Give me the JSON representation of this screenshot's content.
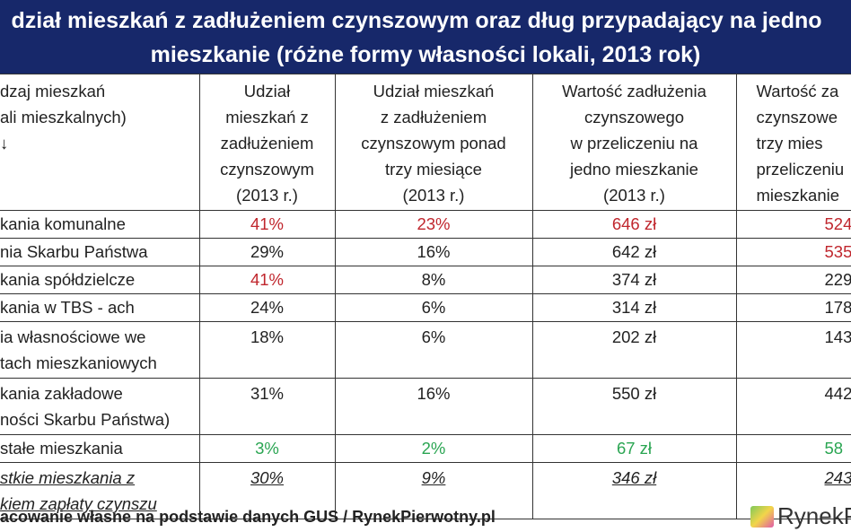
{
  "title": {
    "line1": "dział mieszkań z zadłużeniem czynszowym oraz dług przypadający na jedno",
    "line2": "mieszkanie (różne formy własności lokali, 2013 rok)"
  },
  "headers": [
    "dzaj mieszkań\nali mieszkalnych)\n↓",
    "Udział\nmieszkań z\nzadłużeniem\nczynszowym\n(2013 r.)",
    "Udział mieszkań\nz zadłużeniem\nczynszowym ponad\ntrzy miesiące\n(2013 r.)",
    "Wartość zadłużenia\nczynszowego\nw przeliczeniu na\njedno mieszkanie\n(2013 r.)",
    "Wartość za\nczynszowe\ntrzy mies\nprzeliczeniu\nmieszkanie"
  ],
  "rows": [
    {
      "type": "kania komunalne",
      "share": "41%",
      "share3": "23%",
      "debt": "646 zł",
      "debt3": "524"
    },
    {
      "type": "nia Skarbu Państwa",
      "share": "29%",
      "share3": "16%",
      "debt": "642 zł",
      "debt3": "535"
    },
    {
      "type": "kania spółdzielcze",
      "share": "41%",
      "share3": "8%",
      "debt": "374 zł",
      "debt3": "229"
    },
    {
      "type": "kania w TBS - ach",
      "share": "24%",
      "share3": "6%",
      "debt": "314 zł",
      "debt3": "178"
    },
    {
      "type": "ia własnościowe we\ntach mieszkaniowych",
      "share": "18%",
      "share3": "6%",
      "debt": "202 zł",
      "debt3": "143"
    },
    {
      "type": "kania zakładowe\nności Skarbu Państwa)",
      "share": "31%",
      "share3": "16%",
      "debt": "550 zł",
      "debt3": "442"
    },
    {
      "type": "stałe mieszkania",
      "share": "3%",
      "share3": "2%",
      "debt": "67 zł",
      "debt3": "58"
    },
    {
      "type": "stkie mieszkania z\nkiem zapłaty czynszu",
      "share": "30%",
      "share3": "9%",
      "debt": "346 zł",
      "debt3": "243"
    }
  ],
  "footer": "acowanie własne na podstawie danych GUS / RynekPierwotny.pl",
  "logo": "RynekP",
  "colors": {
    "navy": "#17286a",
    "red": "#c0262d",
    "green": "#2aa552"
  }
}
